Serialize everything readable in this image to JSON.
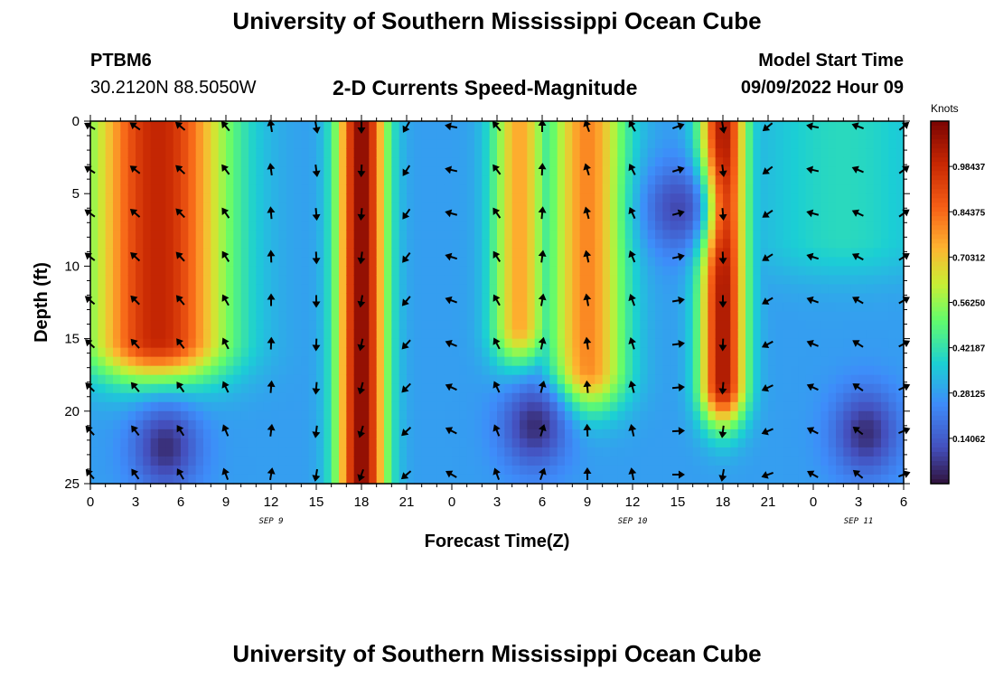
{
  "header": {
    "title": "University of Southern Mississippi Ocean Cube",
    "station_id": "PTBM6",
    "station_coords": "30.2120N  88.5050W",
    "subtitle": "2-D Currents Speed-Magnitude",
    "model_start_label": "Model Start Time",
    "model_start_value": "09/09/2022 Hour 09",
    "bottom_title": "University of Southern Mississippi Ocean Cube"
  },
  "chart_data": {
    "type": "heatmap",
    "title": "2-D Currents Speed-Magnitude",
    "xlabel": "Forecast Time(Z)",
    "ylabel": "Depth (ft)",
    "x_range_hours": [
      0,
      54
    ],
    "y_range_ft": [
      0,
      25
    ],
    "x_ticks": [
      {
        "h": 0,
        "label": "0"
      },
      {
        "h": 3,
        "label": "3"
      },
      {
        "h": 6,
        "label": "6"
      },
      {
        "h": 9,
        "label": "9"
      },
      {
        "h": 12,
        "label": "12"
      },
      {
        "h": 15,
        "label": "15"
      },
      {
        "h": 18,
        "label": "18"
      },
      {
        "h": 21,
        "label": "21"
      },
      {
        "h": 24,
        "label": "0"
      },
      {
        "h": 27,
        "label": "3"
      },
      {
        "h": 30,
        "label": "6"
      },
      {
        "h": 33,
        "label": "9"
      },
      {
        "h": 36,
        "label": "12"
      },
      {
        "h": 39,
        "label": "15"
      },
      {
        "h": 42,
        "label": "18"
      },
      {
        "h": 45,
        "label": "21"
      },
      {
        "h": 48,
        "label": "0"
      },
      {
        "h": 51,
        "label": "3"
      },
      {
        "h": 54,
        "label": "6"
      }
    ],
    "date_labels": [
      {
        "h": 12,
        "label": "SEP 9"
      },
      {
        "h": 36,
        "label": "SEP 10"
      },
      {
        "h": 51,
        "label": "SEP 11"
      }
    ],
    "y_ticks": [
      0,
      5,
      10,
      15,
      20,
      25
    ],
    "colorbar": {
      "title": "Knots",
      "min": 0,
      "max": 1.125,
      "tick_labels": [
        "0.98437",
        "0.84375",
        "0.70312",
        "0.56250",
        "0.42187",
        "0.28125",
        "0.14062"
      ],
      "tick_values": [
        0.98437,
        0.84375,
        0.70312,
        0.5625,
        0.42187,
        0.28125,
        0.14062
      ]
    },
    "speed_peaks_knots": [
      {
        "h_center": 4.5,
        "h_width": 4.5,
        "depth_max": 15,
        "value": 1.0
      },
      {
        "h_center": 18,
        "h_width": 1.6,
        "depth_max": 25,
        "value": 1.1
      },
      {
        "h_center": 28.5,
        "h_width": 1.8,
        "depth_max": 14,
        "value": 0.75
      },
      {
        "h_center": 33,
        "h_width": 2.5,
        "depth_max": 17,
        "value": 0.8
      },
      {
        "h_center": 42,
        "h_width": 1.5,
        "depth_max": 18,
        "value": 1.05
      },
      {
        "h_center": 50,
        "h_width": 6,
        "depth_max": 8,
        "value": 0.4
      }
    ],
    "low_zones_knots": [
      {
        "h_center": 5,
        "depth_center": 22.5,
        "value": 0.05
      },
      {
        "h_center": 29.5,
        "depth_center": 21,
        "value": 0.05
      },
      {
        "h_center": 51.5,
        "depth_center": 21.5,
        "value": 0.05
      },
      {
        "h_center": 39,
        "depth_center": 6,
        "value": 0.1
      }
    ],
    "arrow_times_hours": [
      0,
      3,
      6,
      9,
      12,
      15,
      18,
      21,
      24,
      27,
      30,
      33,
      36,
      39,
      42,
      45,
      48,
      51,
      54
    ],
    "arrow_depths_ft": [
      0,
      3,
      6,
      9,
      12,
      15,
      18,
      21,
      24
    ],
    "arrow_direction_deg_by_time": [
      310,
      315,
      320,
      330,
      0,
      180,
      190,
      220,
      290,
      330,
      10,
      350,
      340,
      80,
      180,
      240,
      290,
      300,
      60
    ]
  }
}
